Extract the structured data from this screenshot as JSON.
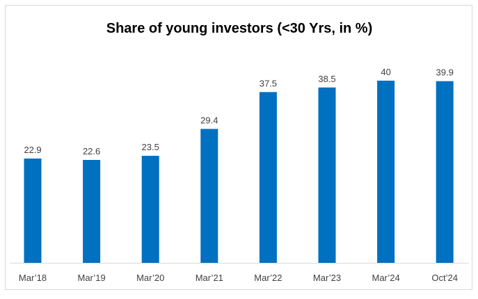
{
  "chart_data": {
    "type": "bar",
    "title": "Share of young investors (<30 Yrs, in %)",
    "categories": [
      "Mar’18",
      "Mar’19",
      "Mar’20",
      "Mar’21",
      "Mar’22",
      "Mar’23",
      "Mar’24",
      "Oct’24"
    ],
    "values": [
      22.9,
      22.6,
      23.5,
      29.4,
      37.5,
      38.5,
      40,
      39.9
    ],
    "data_labels": [
      "22.9",
      "22.6",
      "23.5",
      "29.4",
      "37.5",
      "38.5",
      "40",
      "39.9"
    ],
    "xlabel": "",
    "ylabel": "",
    "ylim": [
      0,
      45
    ],
    "grid": false,
    "legend": "none",
    "bar_color": "#0070C0"
  }
}
